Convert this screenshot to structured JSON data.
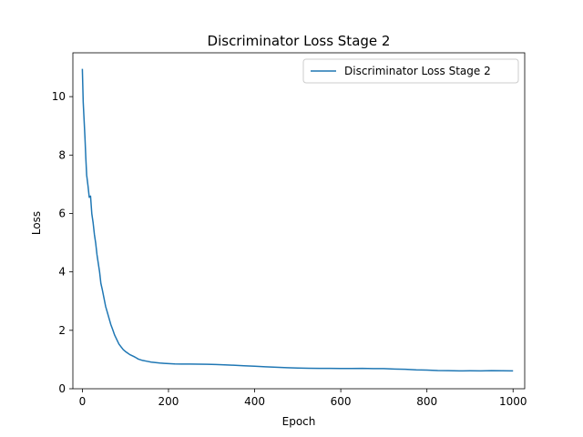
{
  "chart_data": {
    "type": "line",
    "title": "Discriminator Loss Stage 2",
    "xlabel": "Epoch",
    "ylabel": "Loss",
    "xlim": [
      -22,
      1027
    ],
    "ylim": [
      0,
      11.5
    ],
    "xticks": [
      0,
      200,
      400,
      600,
      800,
      1000
    ],
    "yticks": [
      0,
      2,
      4,
      6,
      8,
      10
    ],
    "grid": false,
    "legend_position": "upper right",
    "series": [
      {
        "name": "Discriminator Loss Stage 2",
        "color": "#1f77b4",
        "x": [
          0,
          2,
          4,
          6,
          8,
          10,
          13,
          16,
          19,
          22,
          25,
          28,
          31,
          34,
          37,
          40,
          43,
          46,
          50,
          54,
          58,
          62,
          66,
          70,
          75,
          80,
          85,
          90,
          95,
          100,
          105,
          110,
          115,
          120,
          125,
          130,
          140,
          150,
          160,
          170,
          180,
          190,
          200,
          215,
          230,
          250,
          270,
          290,
          310,
          330,
          350,
          375,
          400,
          425,
          450,
          475,
          500,
          525,
          550,
          575,
          600,
          625,
          650,
          675,
          700,
          725,
          750,
          775,
          800,
          825,
          850,
          875,
          900,
          925,
          950,
          975,
          1000
        ],
        "values": [
          10.95,
          9.8,
          9.2,
          8.6,
          7.9,
          7.3,
          6.95,
          6.55,
          6.6,
          6.0,
          5.7,
          5.3,
          5.0,
          4.6,
          4.3,
          4.0,
          3.6,
          3.4,
          3.1,
          2.8,
          2.6,
          2.4,
          2.2,
          2.05,
          1.85,
          1.7,
          1.55,
          1.45,
          1.35,
          1.28,
          1.22,
          1.16,
          1.12,
          1.08,
          1.04,
          1.0,
          0.96,
          0.94,
          0.92,
          0.91,
          0.9,
          0.89,
          0.88,
          0.86,
          0.85,
          0.84,
          0.83,
          0.82,
          0.81,
          0.8,
          0.79,
          0.78,
          0.77,
          0.76,
          0.75,
          0.74,
          0.73,
          0.72,
          0.71,
          0.7,
          0.69,
          0.68,
          0.68,
          0.67,
          0.67,
          0.66,
          0.66,
          0.65,
          0.65,
          0.64,
          0.64,
          0.63,
          0.63,
          0.62,
          0.62,
          0.61,
          0.61
        ]
      }
    ]
  }
}
